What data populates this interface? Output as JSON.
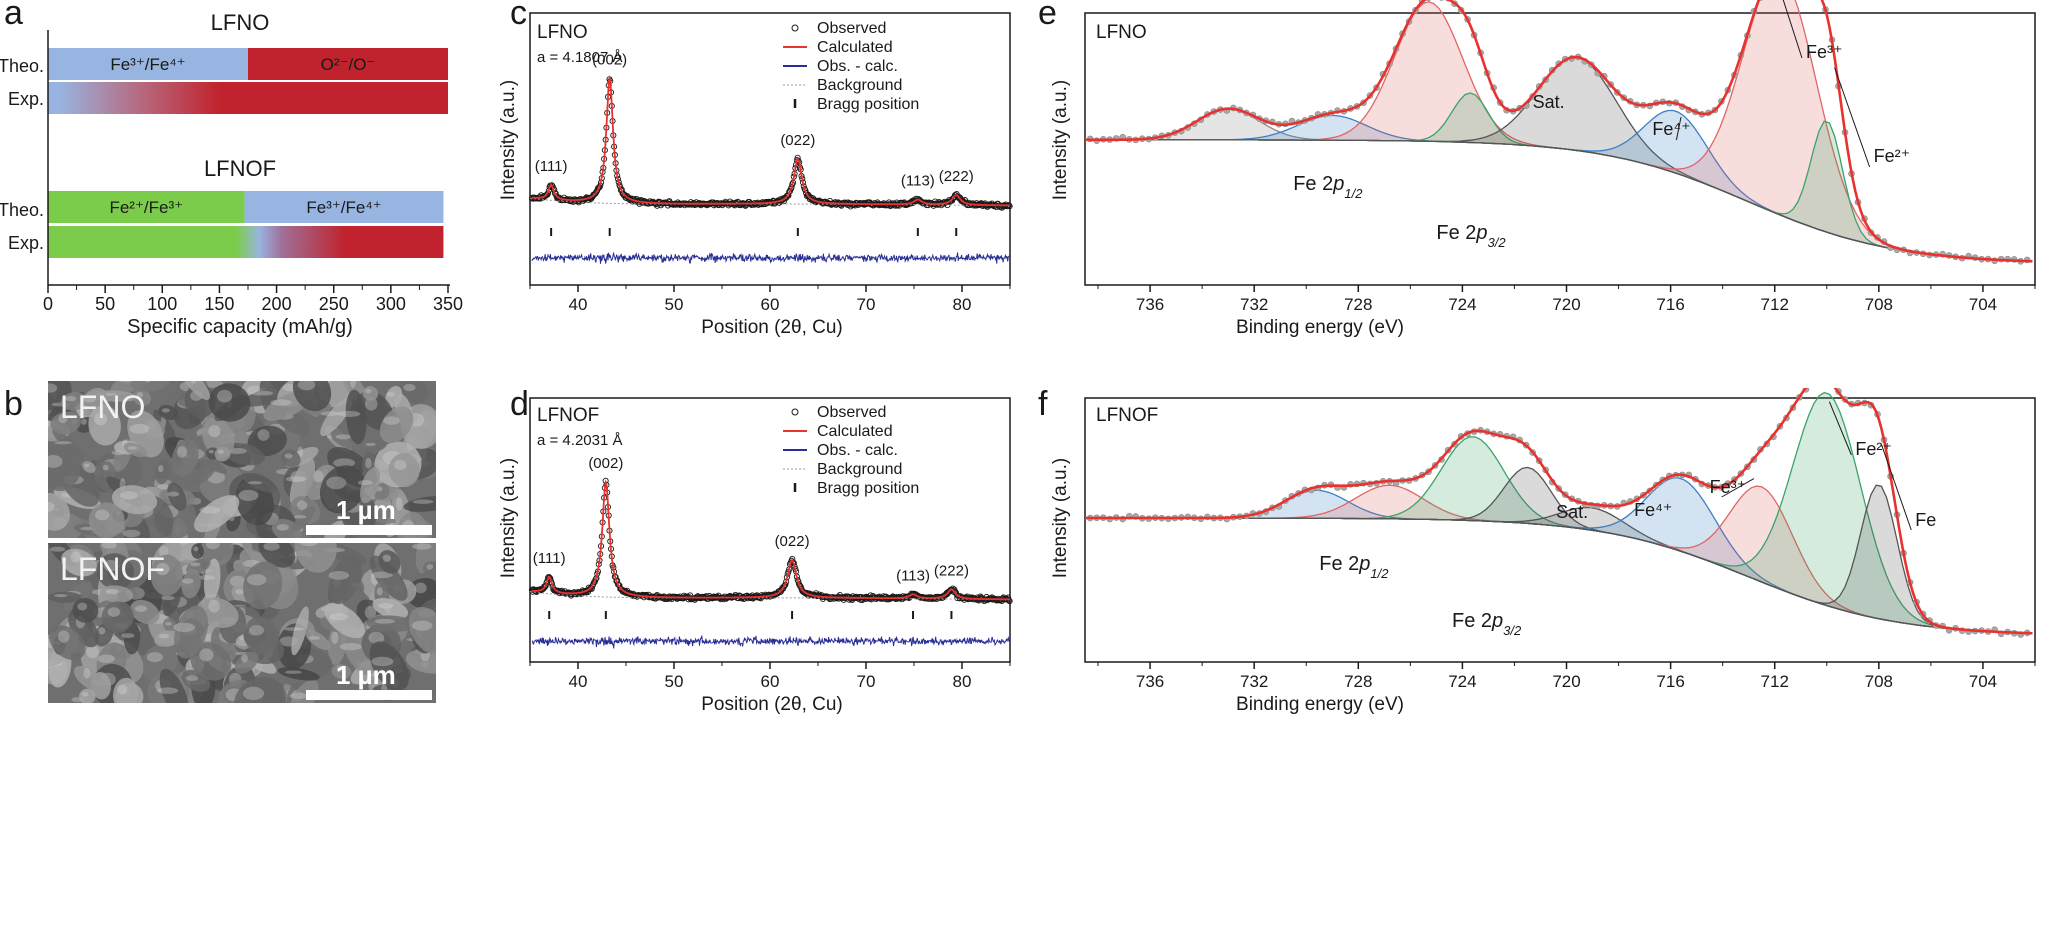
{
  "panel_labels": {
    "a": "a",
    "b": "b",
    "c": "c",
    "d": "d",
    "e": "e",
    "f": "f"
  },
  "panel_a": {
    "xlabel": "Specific capacity (mAh/g)",
    "xlim": [
      0,
      350
    ],
    "ticks": [
      0,
      50,
      100,
      150,
      200,
      250,
      300,
      350
    ],
    "row_theo": "Theo.",
    "row_exp": "Exp.",
    "colors": {
      "fe34": "#98b4e0",
      "ox": "#c0232d",
      "fe23": "#7ccc4c"
    },
    "materials": [
      {
        "name": "LFNO",
        "theo_segments": [
          {
            "label": "Fe³⁺/Fe⁴⁺",
            "start": 0,
            "end": 175,
            "color": "#98b4e0"
          },
          {
            "label": "O²⁻/O⁻",
            "start": 175,
            "end": 350,
            "color": "#c0232d"
          }
        ],
        "exp_gradient": [
          {
            "at": 0,
            "color": "#98b4e0"
          },
          {
            "at": 10,
            "color": "#98b4e0"
          },
          {
            "at": 80,
            "color": "#b66a80"
          },
          {
            "at": 150,
            "color": "#c0232d"
          },
          {
            "at": 350,
            "color": "#c0232d"
          }
        ],
        "exp_end": 350
      },
      {
        "name": "LFNOF",
        "theo_segments": [
          {
            "label": "Fe²⁺/Fe³⁺",
            "start": 0,
            "end": 172,
            "color": "#7ccc4c"
          },
          {
            "label": "Fe³⁺/Fe⁴⁺",
            "start": 172,
            "end": 346,
            "color": "#98b4e0"
          }
        ],
        "exp_gradient": [
          {
            "at": 0,
            "color": "#7ccc4c"
          },
          {
            "at": 165,
            "color": "#7ccc4c"
          },
          {
            "at": 185,
            "color": "#98b4e0"
          },
          {
            "at": 205,
            "color": "#a06f96"
          },
          {
            "at": 260,
            "color": "#c0232d"
          },
          {
            "at": 346,
            "color": "#c0232d"
          }
        ],
        "exp_end": 346
      }
    ]
  },
  "panel_b": {
    "images": [
      {
        "label": "LFNO",
        "scale": "1 µm"
      },
      {
        "label": "LFNOF",
        "scale": "1 µm"
      }
    ]
  },
  "xrd_common": {
    "xlabel": "Position (2θ, Cu)",
    "ylabel": "Intensity (a.u.)",
    "xlim": [
      35,
      85
    ],
    "ticks": [
      40,
      50,
      60,
      70,
      80
    ],
    "legend": [
      "Observed",
      "Calculated",
      "Obs. - calc.",
      "Background",
      "Bragg position"
    ],
    "colors": {
      "observed": "#1a1a1a",
      "calculated": "#e8322e",
      "diff": "#2a2f96",
      "background": "#9a9a9a"
    }
  },
  "panel_c": {
    "sample": "LFNO",
    "lattice": "a = 4.1807 Å",
    "peaks": [
      {
        "hkl": "(111)",
        "x": 37.2,
        "height": 0.12,
        "width": 0.35
      },
      {
        "hkl": "(002)",
        "x": 43.3,
        "height": 1.0,
        "width": 0.42
      },
      {
        "hkl": "(022)",
        "x": 62.9,
        "height": 0.36,
        "width": 0.5
      },
      {
        "hkl": "(113)",
        "x": 75.4,
        "height": 0.04,
        "width": 0.5
      },
      {
        "hkl": "(222)",
        "x": 79.4,
        "height": 0.08,
        "width": 0.5
      }
    ],
    "bragg": [
      37.2,
      43.3,
      62.9,
      75.4,
      79.4
    ]
  },
  "panel_d": {
    "sample": "LFNOF",
    "lattice": "a = 4.2031 Å",
    "peaks": [
      {
        "hkl": "(111)",
        "x": 37.0,
        "height": 0.12,
        "width": 0.35
      },
      {
        "hkl": "(002)",
        "x": 42.9,
        "height": 0.85,
        "width": 0.45
      },
      {
        "hkl": "(022)",
        "x": 62.3,
        "height": 0.28,
        "width": 0.55
      },
      {
        "hkl": "(113)",
        "x": 74.9,
        "height": 0.03,
        "width": 0.5
      },
      {
        "hkl": "(222)",
        "x": 78.9,
        "height": 0.07,
        "width": 0.5
      }
    ],
    "bragg": [
      37.0,
      42.9,
      62.3,
      74.9,
      78.9
    ]
  },
  "xps_common": {
    "xlabel": "Binding energy (eV)",
    "ylabel": "Intensity (a.u.)",
    "xlim": [
      738.5,
      702
    ],
    "ticks": [
      736,
      732,
      728,
      724,
      720,
      716,
      712,
      708,
      704
    ],
    "colors": {
      "envelope": "#e8322e",
      "observed": "#a8a8a8",
      "background": "#555555"
    }
  },
  "panel_e": {
    "sample": "LFNO",
    "label_fe3": "Fe³⁺",
    "label_fe4": "Fe⁴⁺",
    "label_fe2": "Fe²⁺",
    "label_sat": "Sat.",
    "label_half": "Fe 2p1/2",
    "label_three": "Fe 2p3/2",
    "components": [
      {
        "center": 733.0,
        "height": 0.1,
        "width": 1.2,
        "color": "#8a8a8a"
      },
      {
        "center": 729.0,
        "height": 0.08,
        "width": 1.3,
        "color": "#3a7fc4"
      },
      {
        "center": 725.3,
        "height": 0.45,
        "width": 1.3,
        "color": "#e06666"
      },
      {
        "center": 723.7,
        "height": 0.16,
        "width": 0.7,
        "color": "#3aa46b"
      },
      {
        "center": 719.6,
        "height": 0.3,
        "width": 1.5,
        "color": "#555555"
      },
      {
        "center": 715.8,
        "height": 0.2,
        "width": 1.2,
        "color": "#3a7fc4"
      },
      {
        "center": 711.8,
        "height": 0.78,
        "width": 1.4,
        "color": "#e06666"
      },
      {
        "center": 710.0,
        "height": 0.36,
        "width": 0.6,
        "color": "#3aa46b"
      }
    ]
  },
  "panel_f": {
    "sample": "LFNOF",
    "label_fe2": "Fe²⁺",
    "label_fe3": "Fe³⁺",
    "label_fe4": "Fe⁴⁺",
    "label_fe": "Fe",
    "label_sat": "Sat.",
    "label_half": "Fe 2p1/2",
    "label_three": "Fe 2p3/2",
    "components": [
      {
        "center": 729.6,
        "height": 0.1,
        "width": 1.2,
        "color": "#3a7fc4"
      },
      {
        "center": 726.8,
        "height": 0.12,
        "width": 1.3,
        "color": "#e06666"
      },
      {
        "center": 723.6,
        "height": 0.3,
        "width": 1.2,
        "color": "#3aa46b"
      },
      {
        "center": 721.5,
        "height": 0.2,
        "width": 0.9,
        "color": "#555555"
      },
      {
        "center": 719.0,
        "height": 0.08,
        "width": 1.2,
        "color": "#555555"
      },
      {
        "center": 715.6,
        "height": 0.26,
        "width": 1.3,
        "color": "#3a7fc4"
      },
      {
        "center": 712.5,
        "height": 0.34,
        "width": 1.2,
        "color": "#e06666"
      },
      {
        "center": 710.0,
        "height": 0.76,
        "width": 1.3,
        "color": "#3aa46b"
      },
      {
        "center": 708.0,
        "height": 0.48,
        "width": 0.7,
        "color": "#555555"
      }
    ]
  }
}
